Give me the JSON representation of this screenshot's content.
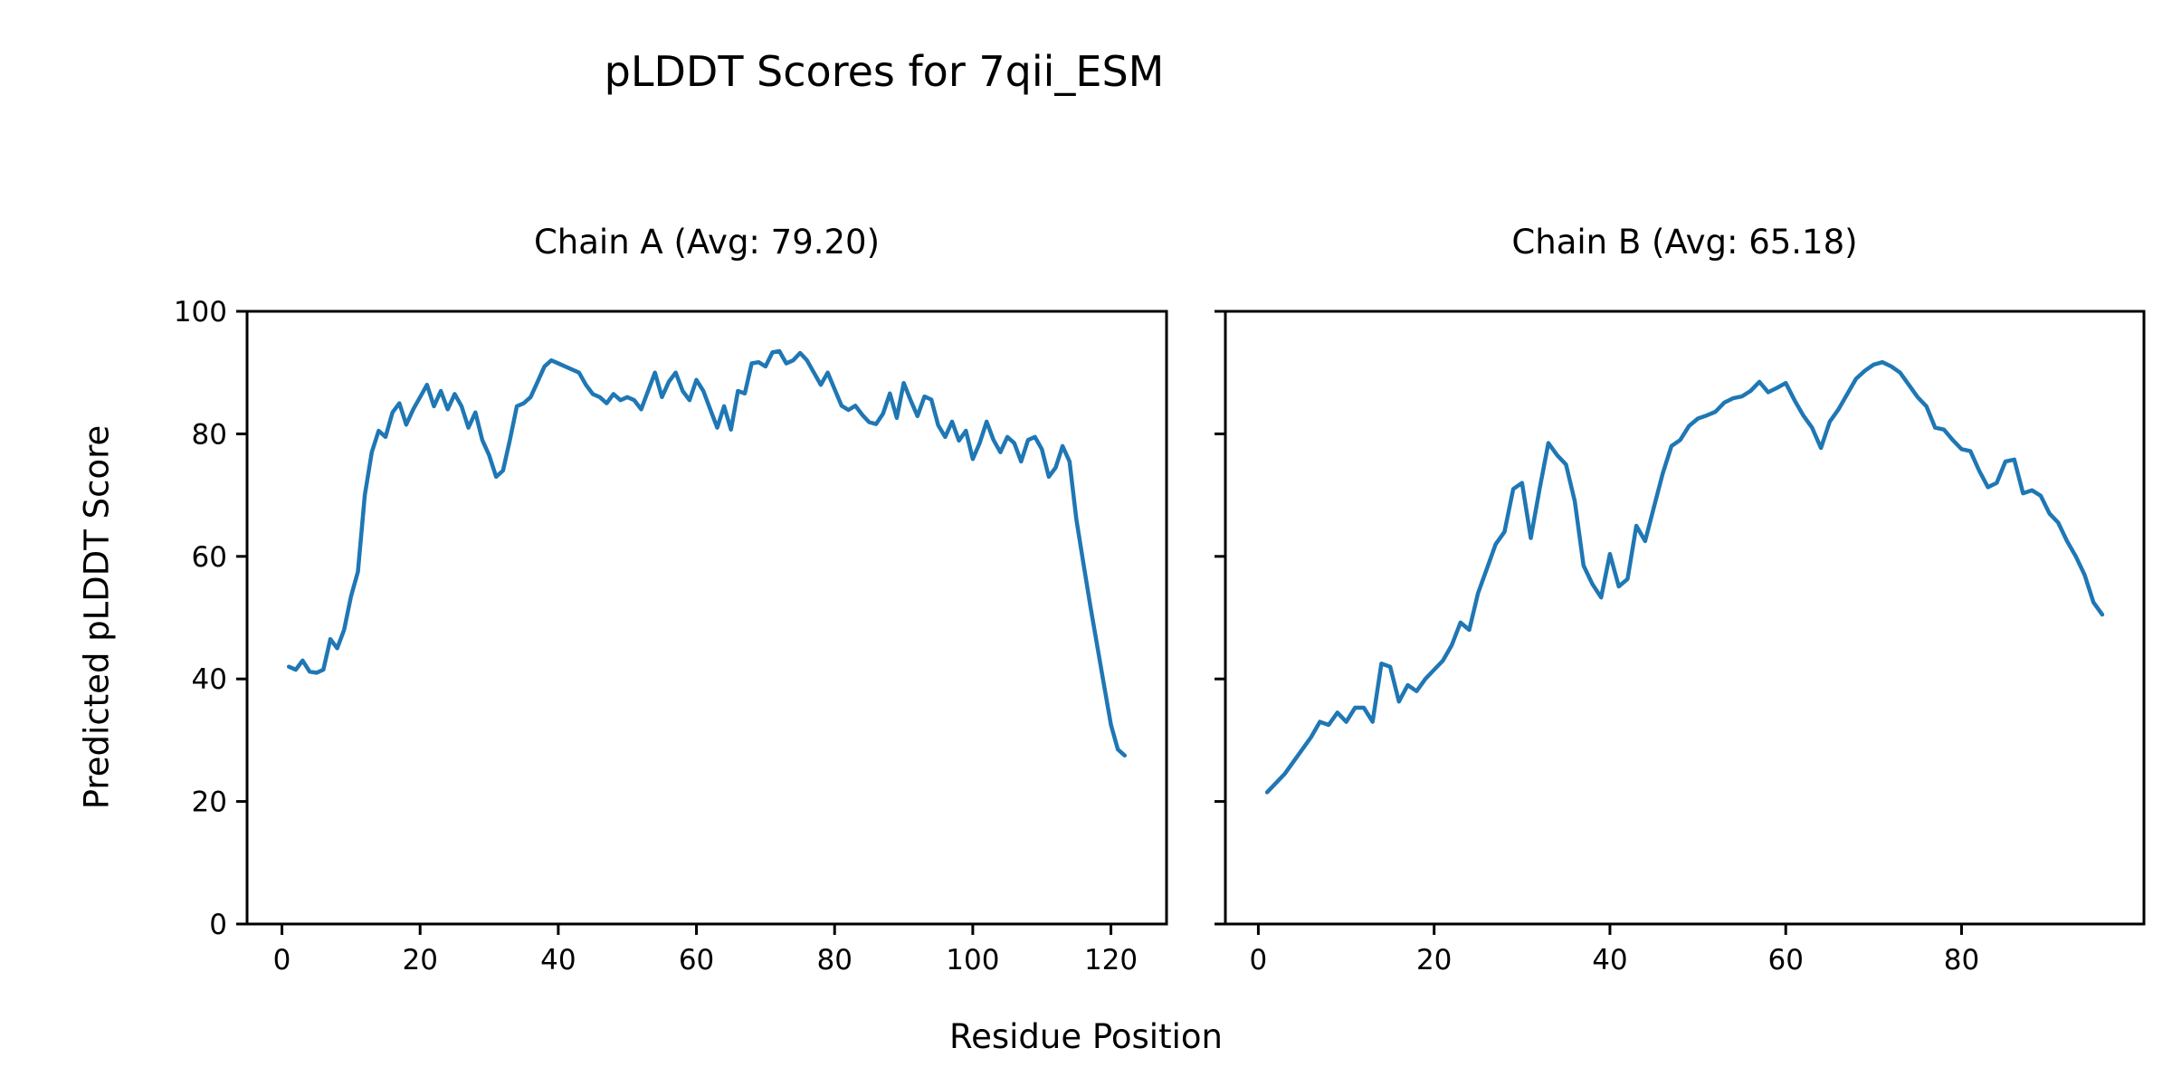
{
  "figure": {
    "suptitle": "pLDDT Scores for 7qii_ESM",
    "xlabel": "Residue Position",
    "ylabel": "Predicted pLDDT Score",
    "background": "#ffffff",
    "line_color": "#1f77b4",
    "spine_color": "#000000"
  },
  "chart_data": [
    {
      "type": "line",
      "title": "Chain A (Avg: 79.20)",
      "avg_label": "79.20",
      "xlabel": "Residue Position",
      "ylabel": "Predicted pLDDT Score",
      "x_start": 1,
      "xlim": [
        -5.05,
        128.05
      ],
      "ylim": [
        0,
        100
      ],
      "xticks": [
        0,
        20,
        40,
        60,
        80,
        100,
        120
      ],
      "yticks": [
        0,
        20,
        40,
        60,
        80,
        100
      ],
      "show_ytick_labels": true,
      "grid": false,
      "values": [
        42,
        41.5,
        43,
        41.2,
        41,
        41.5,
        46.5,
        45,
        48,
        53.5,
        57.5,
        70,
        77,
        80.5,
        79.5,
        83.5,
        85,
        81.5,
        84,
        86,
        88,
        84.5,
        87,
        84,
        86.5,
        84.5,
        81,
        83.5,
        79,
        76.5,
        73,
        74,
        79,
        84.5,
        85,
        86,
        88.5,
        91,
        92,
        91.5,
        91,
        90.5,
        90,
        88,
        86.5,
        86,
        85,
        86.5,
        85.5,
        86,
        85.5,
        84,
        87,
        90,
        86,
        88.5,
        90,
        87,
        85.5,
        88.8,
        87,
        84,
        81,
        84.5,
        80.7,
        87,
        86.6,
        91.5,
        91.7,
        91,
        93.3,
        93.5,
        91.5,
        92,
        93.2,
        92,
        90,
        88,
        90,
        87.3,
        84.6,
        83.9,
        84.6,
        83.1,
        81.9,
        81.6,
        83.3,
        86.6,
        82.6,
        88.3,
        85.5,
        82.9,
        86.1,
        85.6,
        81.4,
        79.5,
        82,
        78.9,
        80.5,
        75.9,
        78.5,
        82,
        79,
        77,
        79.5,
        78.5,
        75.5,
        79,
        79.5,
        77.5,
        73,
        74.5,
        78,
        75.5,
        66,
        59,
        52,
        45.5,
        39,
        32.5,
        28.5,
        27.5
      ]
    },
    {
      "type": "line",
      "title": "Chain B (Avg: 65.18)",
      "avg_label": "65.18",
      "xlabel": "Residue Position",
      "ylabel": "Predicted pLDDT Score",
      "x_start": 1,
      "xlim": [
        -3.75,
        100.75
      ],
      "ylim": [
        0,
        100
      ],
      "xticks": [
        0,
        20,
        40,
        60,
        80
      ],
      "yticks": [
        0,
        20,
        40,
        60,
        80,
        100
      ],
      "show_ytick_labels": false,
      "grid": false,
      "values": [
        21.5,
        23,
        24.5,
        26.5,
        28.5,
        30.5,
        33,
        32.5,
        34.5,
        33,
        35.3,
        35.3,
        33,
        42.5,
        42,
        36.3,
        39,
        38,
        40,
        41.5,
        43,
        45.5,
        49.2,
        48,
        54,
        58,
        62,
        64,
        71,
        72,
        63,
        71,
        78.5,
        76.5,
        75,
        69,
        58.5,
        55.5,
        53.3,
        60.4,
        55.1,
        56.3,
        65,
        62.5,
        68,
        73.5,
        78,
        79,
        81.3,
        82.5,
        83,
        83.6,
        85.1,
        85.8,
        86.1,
        87,
        88.5,
        86.8,
        87.5,
        88.3,
        85.5,
        83,
        81,
        77.7,
        82,
        84,
        86.5,
        89,
        90.3,
        91.3,
        91.7,
        91,
        90,
        88,
        86,
        84.5,
        81,
        80.7,
        79,
        77.5,
        77.2,
        74,
        71.3,
        72,
        75.5,
        75.8,
        70.3,
        70.8,
        69.9,
        67,
        65.5,
        62.5,
        60,
        57,
        52.5,
        50.5
      ]
    }
  ]
}
